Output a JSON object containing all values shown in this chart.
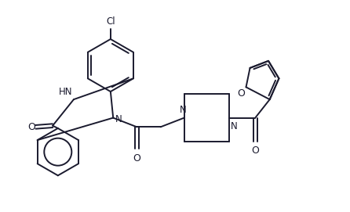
{
  "bg": "#ffffff",
  "lc": "#1a1a2e",
  "lw": 1.4,
  "fw": 4.46,
  "fh": 2.71,
  "dpi": 100,
  "xlim": [
    0,
    12
  ],
  "ylim": [
    0,
    8
  ]
}
